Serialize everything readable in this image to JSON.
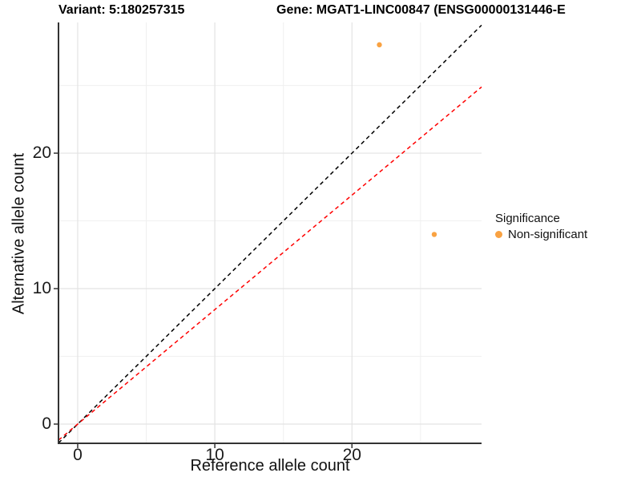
{
  "chart_data": {
    "type": "scatter",
    "title_left": "Variant: 5:180257315",
    "title_right": "Gene: MGAT1-LINC00847 (ENSG00000131446-E",
    "xlabel": "Reference allele count",
    "ylabel": "Alternative allele count",
    "xlim": [
      -1.4,
      29.45
    ],
    "ylim": [
      -1.42,
      29.65
    ],
    "x_major_ticks": [
      0,
      10,
      20
    ],
    "x_minor_ticks": [
      5,
      15,
      25
    ],
    "y_major_ticks": [
      0,
      10,
      20
    ],
    "y_minor_ticks": [
      5,
      15,
      25
    ],
    "grid": true,
    "points": [
      {
        "x": 22,
        "y": 28,
        "series": "Non-significant"
      },
      {
        "x": 26,
        "y": 14,
        "series": "Non-significant"
      }
    ],
    "lines": [
      {
        "name": "identity-line",
        "slope": 1.0,
        "intercept": 0,
        "color": "#000000",
        "dashed": true
      },
      {
        "name": "expected-ratio-line",
        "slope": 0.845,
        "intercept": 0,
        "color": "#FF0000",
        "dashed": true
      }
    ],
    "legend": {
      "position": "right",
      "title": "Significance",
      "items": [
        {
          "label": "Non-significant",
          "color": "#F9A242",
          "marker": "circle"
        }
      ]
    },
    "colors": {
      "background": "#FFFFFF",
      "point": "#F9A242",
      "grid_major": "#E3E3E3",
      "grid_minor": "#F0F0F0",
      "axis": "#333333",
      "tick_text": "#1a1a1a"
    }
  }
}
